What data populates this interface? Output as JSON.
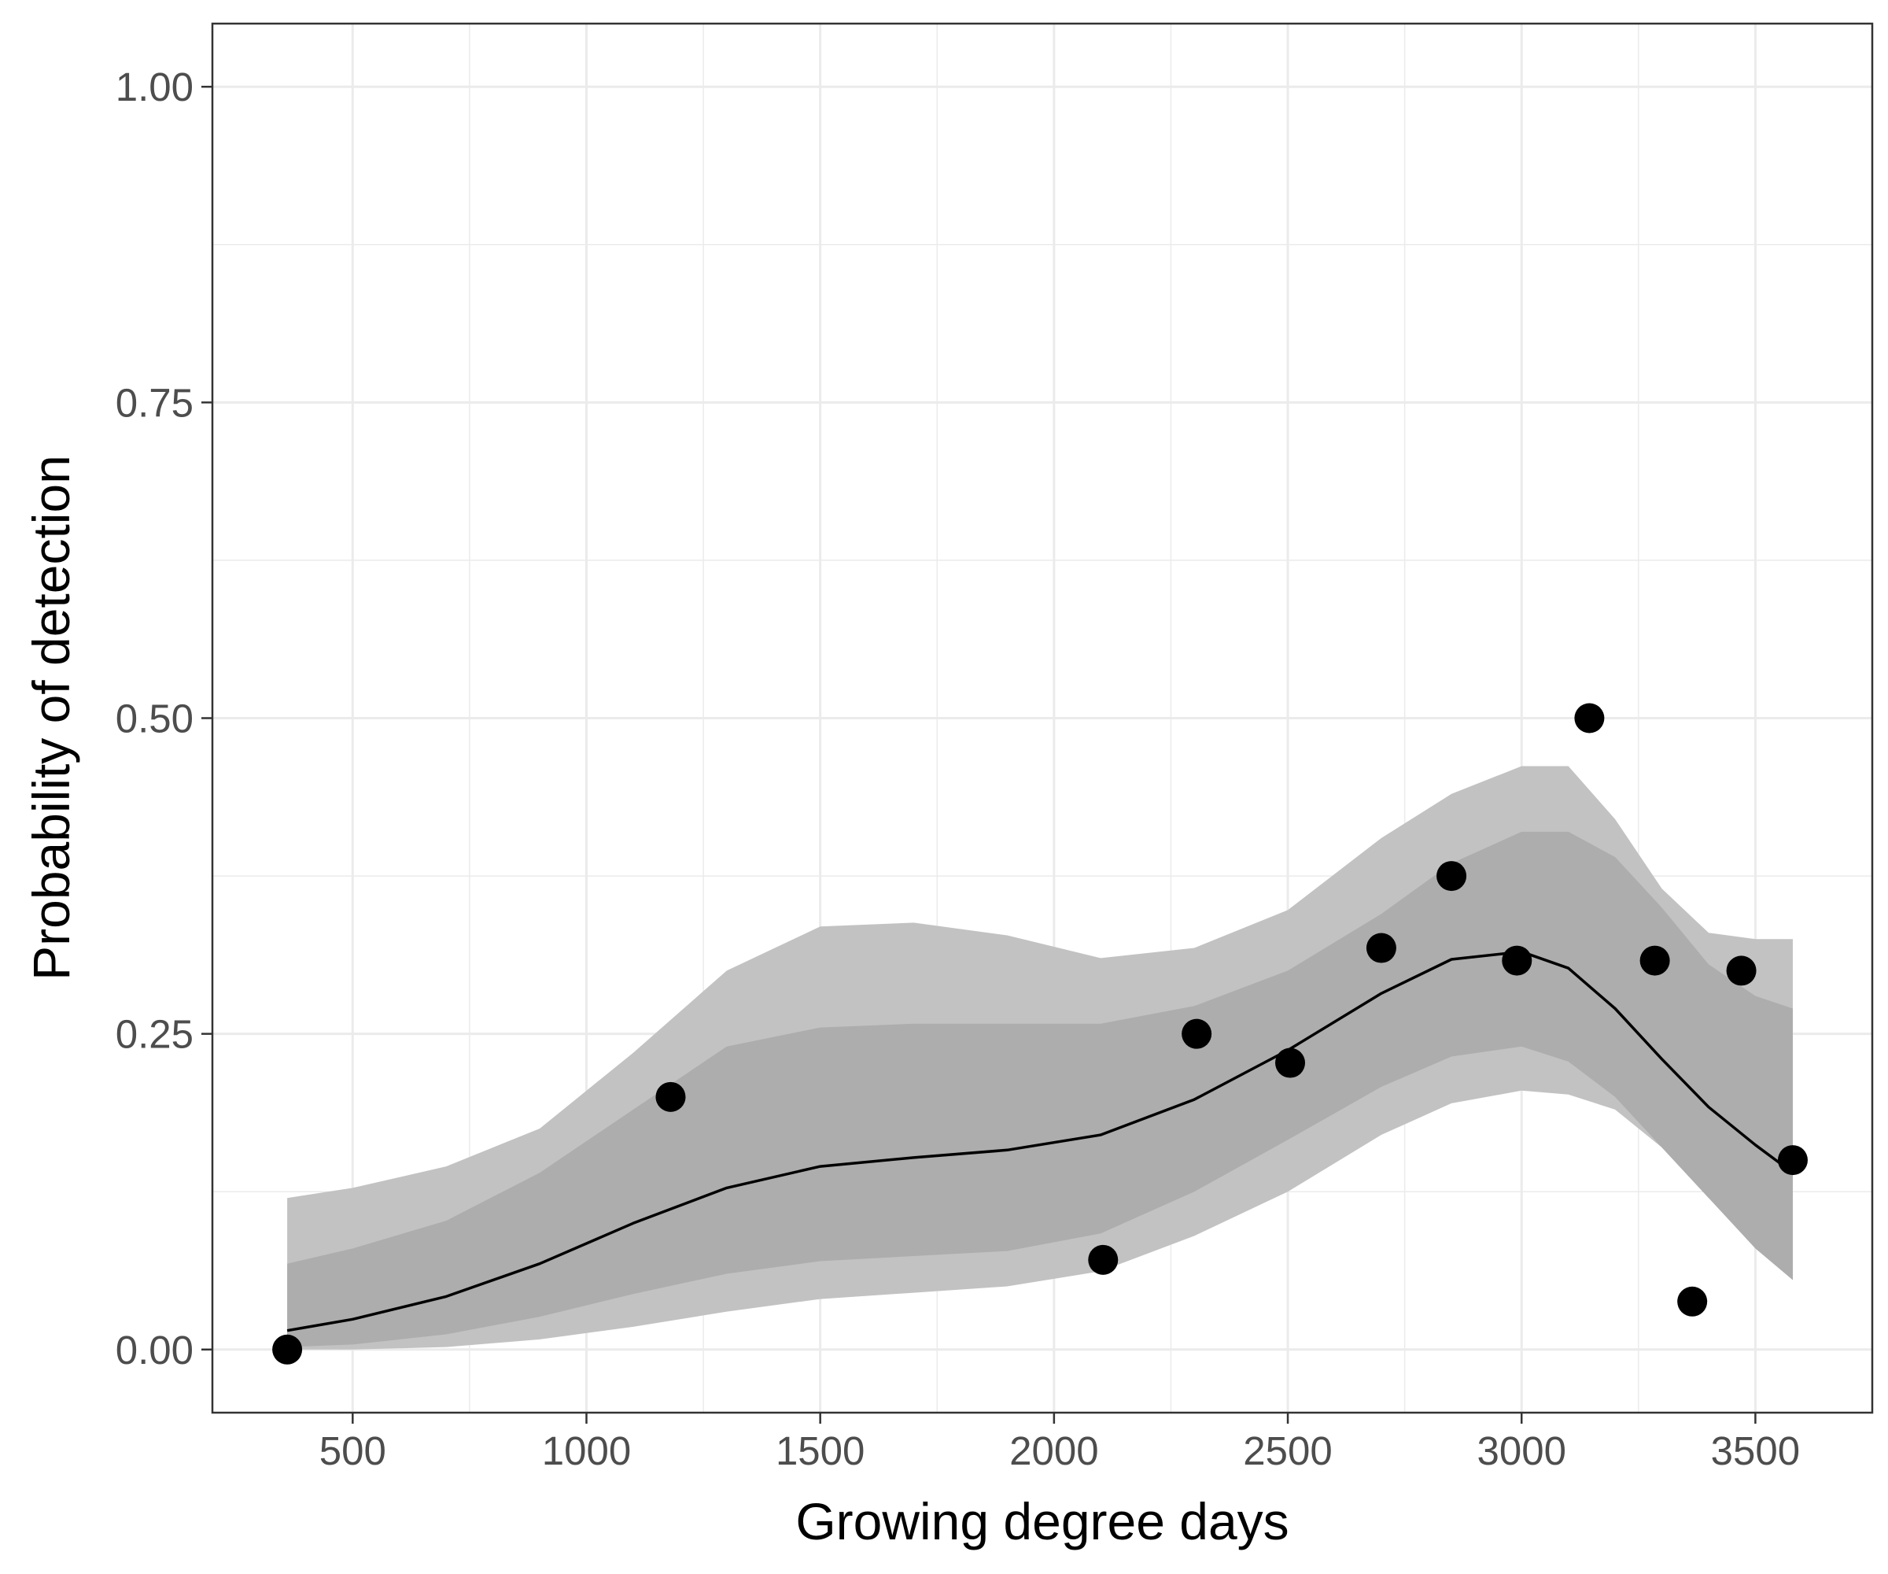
{
  "chart_data": {
    "type": "scatter",
    "title": "",
    "xlabel": "Growing degree days",
    "ylabel": "Probability of detection",
    "xlim": [
      200,
      3750
    ],
    "ylim": [
      -0.05,
      1.05
    ],
    "x_ticks": [
      500,
      1000,
      1500,
      2000,
      2500,
      3000,
      3500
    ],
    "x_tick_labels": [
      "500",
      "1000",
      "1500",
      "2000",
      "2500",
      "3000",
      "3500"
    ],
    "y_ticks": [
      0,
      0.25,
      0.5,
      0.75,
      1.0
    ],
    "y_tick_labels": [
      "0.00",
      "0.25",
      "0.50",
      "0.75",
      "1.00"
    ],
    "grid": true,
    "legend": "none",
    "colors": {
      "points": "#000000",
      "line": "#000000",
      "band_outer": "#c2c2c2",
      "band_inner": "#adadad",
      "grid": "#ebebeb",
      "panel_border": "#333333"
    },
    "points": [
      {
        "x": 360,
        "y": 0.0
      },
      {
        "x": 1180,
        "y": 0.2
      },
      {
        "x": 2105,
        "y": 0.071
      },
      {
        "x": 2305,
        "y": 0.25
      },
      {
        "x": 2505,
        "y": 0.227
      },
      {
        "x": 2700,
        "y": 0.318
      },
      {
        "x": 2850,
        "y": 0.375
      },
      {
        "x": 2990,
        "y": 0.308
      },
      {
        "x": 3145,
        "y": 0.5
      },
      {
        "x": 3285,
        "y": 0.308
      },
      {
        "x": 3365,
        "y": 0.038
      },
      {
        "x": 3470,
        "y": 0.3
      },
      {
        "x": 3580,
        "y": 0.15
      }
    ],
    "fit": {
      "x": [
        360,
        500,
        700,
        900,
        1100,
        1300,
        1500,
        1700,
        1900,
        2100,
        2300,
        2500,
        2700,
        2850,
        3000,
        3100,
        3200,
        3300,
        3400,
        3500,
        3580
      ],
      "y": [
        0.015,
        0.024,
        0.042,
        0.068,
        0.1,
        0.128,
        0.145,
        0.152,
        0.158,
        0.17,
        0.198,
        0.237,
        0.282,
        0.309,
        0.315,
        0.302,
        0.27,
        0.23,
        0.192,
        0.162,
        0.14
      ],
      "inner_lower": [
        0.002,
        0.004,
        0.012,
        0.026,
        0.044,
        0.06,
        0.07,
        0.074,
        0.078,
        0.092,
        0.125,
        0.166,
        0.208,
        0.232,
        0.24,
        0.228,
        0.2,
        0.16,
        0.12,
        0.08,
        0.055
      ],
      "inner_upper": [
        0.068,
        0.08,
        0.102,
        0.14,
        0.19,
        0.24,
        0.255,
        0.258,
        0.258,
        0.258,
        0.272,
        0.3,
        0.345,
        0.385,
        0.41,
        0.41,
        0.39,
        0.35,
        0.305,
        0.28,
        0.27
      ],
      "outer_lower": [
        0.0,
        0.0,
        0.002,
        0.008,
        0.018,
        0.03,
        0.04,
        0.045,
        0.05,
        0.062,
        0.09,
        0.125,
        0.17,
        0.195,
        0.205,
        0.202,
        0.19,
        0.16,
        0.12,
        0.09,
        0.068
      ],
      "outer_upper": [
        0.12,
        0.128,
        0.145,
        0.175,
        0.235,
        0.3,
        0.335,
        0.338,
        0.328,
        0.31,
        0.318,
        0.348,
        0.405,
        0.44,
        0.462,
        0.462,
        0.42,
        0.365,
        0.33,
        0.325,
        0.325
      ]
    }
  }
}
